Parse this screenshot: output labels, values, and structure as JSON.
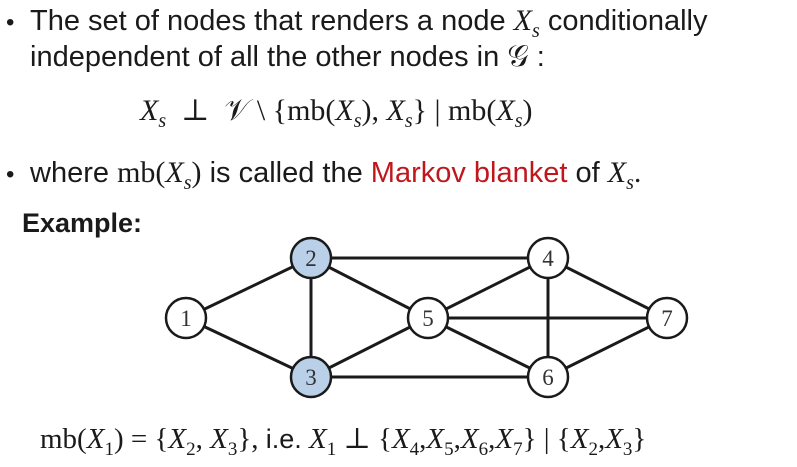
{
  "bullet1": {
    "line1_prefix": "The set of nodes that renders a node",
    "node_symbol": "X",
    "node_sub": "s",
    "line1_suffix": "conditionally",
    "line2_prefix": "independent of all the other nodes in",
    "graph_symbol": "𝒢",
    "line2_suffix": ":"
  },
  "formula": {
    "text_a": "X",
    "sub_a": "s",
    "perp": "⊥",
    "vset": "𝒱",
    "rest": "\\ {mb(",
    "text_b": "X",
    "sub_b": "s",
    "mid": "),",
    "text_c": "X",
    "sub_c": "s",
    "cond": "} | mb(",
    "text_d": "X",
    "sub_d": "s",
    "end": ")"
  },
  "bullet2": {
    "prefix": "where",
    "mb_open": "mb(",
    "mb_x": "X",
    "mb_sub": "s",
    "mb_close": ")",
    "middle": "is called the",
    "highlight": "Markov blanket",
    "of_text": "of",
    "end_x": "X",
    "end_sub": "s",
    "end_punct": "."
  },
  "example_label": "Example:",
  "graph": {
    "nodes": [
      {
        "id": "1",
        "highlighted": false
      },
      {
        "id": "2",
        "highlighted": true
      },
      {
        "id": "3",
        "highlighted": true
      },
      {
        "id": "4",
        "highlighted": false
      },
      {
        "id": "5",
        "highlighted": false
      },
      {
        "id": "6",
        "highlighted": false
      },
      {
        "id": "7",
        "highlighted": false
      }
    ],
    "edges": [
      [
        "1",
        "2"
      ],
      [
        "1",
        "3"
      ],
      [
        "2",
        "3"
      ],
      [
        "2",
        "4"
      ],
      [
        "2",
        "5"
      ],
      [
        "3",
        "5"
      ],
      [
        "3",
        "6"
      ],
      [
        "5",
        "4"
      ],
      [
        "5",
        "6"
      ],
      [
        "5",
        "7"
      ],
      [
        "4",
        "6"
      ],
      [
        "4",
        "7"
      ],
      [
        "6",
        "7"
      ]
    ],
    "highlight_color": "#b9d0e8",
    "node_fill": "#ffffff",
    "stroke_color": "#1a1a1a"
  },
  "bottom_formula": {
    "mb": "mb(",
    "x1": "X",
    "s1": "1",
    "eq": ") = {",
    "x2": "X",
    "s2": "2",
    "comma": ",",
    "x3": "X",
    "s3": "3",
    "close": "},",
    "ie": "i.e.",
    "y1": "X",
    "t1": "1",
    "perp": "⊥",
    "open2": "{",
    "y4": "X",
    "t4": "4",
    "y5": "X",
    "t5": "5",
    "y6": "X",
    "t6": "6",
    "y7": "X",
    "t7": "7",
    "mid2": "} | {",
    "z2": "X",
    "u2": "2",
    "z3": "X",
    "u3": "3",
    "end2": "}"
  }
}
